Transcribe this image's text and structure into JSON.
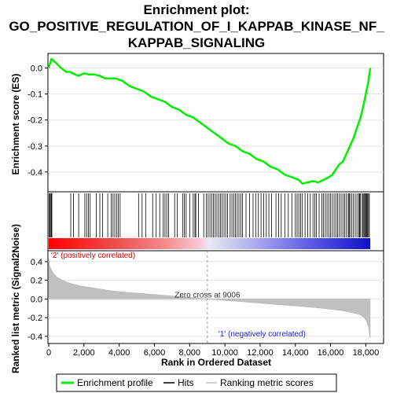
{
  "chart_data": {
    "type": "line",
    "title": [
      "Enrichment plot:",
      "GO_POSITIVE_REGULATION_OF_I_KAPPAB_KINASE_NF_",
      "KAPPAB_SIGNALING"
    ],
    "es_panel": {
      "ylabel": "Enrichment score (ES)",
      "ylim": [
        -0.47,
        0.05
      ],
      "yticks": [
        0.0,
        -0.1,
        -0.2,
        -0.3,
        -0.4
      ],
      "ytick_labels": [
        "0.0",
        "-0.1",
        "-0.2",
        "-0.3",
        "-0.4"
      ],
      "color": "#00ee00",
      "series": {
        "name": "Enrichment profile",
        "x": [
          0,
          150,
          400,
          700,
          1000,
          1200,
          1500,
          1700,
          2000,
          2300,
          2600,
          2900,
          3200,
          3500,
          3800,
          4200,
          4600,
          5000,
          5400,
          5800,
          6200,
          6600,
          7000,
          7400,
          7800,
          8200,
          8600,
          9000,
          9400,
          9800,
          10200,
          10600,
          11000,
          11400,
          11800,
          12200,
          12600,
          13000,
          13400,
          13800,
          14200,
          14400,
          14700,
          15000,
          15300,
          15600,
          15900,
          16100,
          16300,
          16500,
          16700,
          16900,
          17100,
          17300,
          17500,
          17700,
          17850,
          18000,
          18150,
          18250
        ],
        "y": [
          0.0,
          0.035,
          0.02,
          0.0,
          -0.015,
          -0.015,
          -0.025,
          -0.03,
          -0.02,
          -0.025,
          -0.025,
          -0.03,
          -0.04,
          -0.04,
          -0.04,
          -0.05,
          -0.07,
          -0.08,
          -0.09,
          -0.11,
          -0.12,
          -0.13,
          -0.15,
          -0.16,
          -0.18,
          -0.19,
          -0.21,
          -0.23,
          -0.25,
          -0.27,
          -0.29,
          -0.3,
          -0.32,
          -0.33,
          -0.35,
          -0.36,
          -0.38,
          -0.39,
          -0.41,
          -0.42,
          -0.43,
          -0.445,
          -0.44,
          -0.435,
          -0.44,
          -0.43,
          -0.42,
          -0.41,
          -0.39,
          -0.37,
          -0.36,
          -0.33,
          -0.3,
          -0.27,
          -0.23,
          -0.19,
          -0.15,
          -0.1,
          -0.05,
          0.0
        ]
      }
    },
    "hits": {
      "name": "Hits",
      "x": [
        30,
        60,
        100,
        150,
        180,
        1250,
        1400,
        1700,
        2050,
        2150,
        2250,
        2350,
        2700,
        2900,
        3050,
        3350,
        3550,
        3650,
        3750,
        3850,
        3950,
        4050,
        5100,
        5300,
        5500,
        5900,
        6100,
        6300,
        6500,
        6600,
        6700,
        6800,
        7150,
        7300,
        7600,
        7700,
        7800,
        8000,
        8200,
        8300,
        8350,
        8500,
        8800,
        8950,
        9050,
        9150,
        9250,
        9350,
        9450,
        9550,
        9650,
        9750,
        9850,
        9950,
        10050,
        10150,
        10300,
        10400,
        10500,
        10600,
        10700,
        10800,
        10900,
        11000,
        11200,
        11400,
        11600,
        11750,
        11900,
        12050,
        12200,
        12350,
        12500,
        12650,
        12900,
        13050,
        13200,
        13400,
        13600,
        13800,
        14000,
        14100,
        14200,
        14300,
        14400,
        14550,
        14700,
        14850,
        15000,
        15100,
        15200,
        15350,
        15500,
        15600,
        15700,
        15800,
        15900,
        16000,
        16100,
        16200,
        16300,
        16400,
        16500,
        16600,
        16700,
        16800,
        16900,
        17000,
        17050,
        17100,
        17200,
        17300,
        17400,
        17500,
        17600,
        17650,
        17700,
        17800,
        17850,
        17900,
        17950,
        18000,
        18050,
        18100,
        18150,
        18200
      ]
    },
    "metric_panel": {
      "ylabel": "Ranked list metric (Signal2Noise)",
      "xlabel": "Rank in Ordered Dataset",
      "ylim": [
        -0.46,
        0.5
      ],
      "yticks": [
        0.4,
        0.2,
        0.0,
        -0.2,
        -0.4
      ],
      "ytick_labels": [
        "0.4",
        "0.2",
        "0.0",
        "-0.2",
        "-0.4"
      ],
      "xlim": [
        0,
        18250
      ],
      "xticks": [
        0,
        2000,
        4000,
        6000,
        8000,
        10000,
        12000,
        14000,
        16000,
        18000
      ],
      "xtick_labels": [
        "0",
        "2,000",
        "4,000",
        "6,000",
        "8,000",
        "10,000",
        "12,000",
        "14,000",
        "16,000",
        "18,000"
      ],
      "zero_cross": 9006,
      "zero_cross_label": "Zero cross at 9006",
      "pos_label": "'2' (positively correlated)",
      "neg_label": "'1' (negatively correlated)",
      "series": {
        "name": "Ranking metric scores",
        "x": [
          0,
          50,
          150,
          300,
          500,
          800,
          1200,
          1800,
          2500,
          3500,
          4500,
          5500,
          6500,
          7500,
          8500,
          9006,
          10000,
          11000,
          12000,
          13000,
          14000,
          15000,
          16000,
          16800,
          17300,
          17700,
          17900,
          18050,
          18150,
          18250
        ],
        "y": [
          0.42,
          0.36,
          0.31,
          0.27,
          0.23,
          0.2,
          0.17,
          0.14,
          0.12,
          0.09,
          0.07,
          0.055,
          0.04,
          0.025,
          0.01,
          0.0,
          -0.015,
          -0.03,
          -0.045,
          -0.06,
          -0.075,
          -0.09,
          -0.11,
          -0.13,
          -0.15,
          -0.17,
          -0.2,
          -0.24,
          -0.3,
          -0.42
        ]
      }
    },
    "legend": {
      "position": "bottom",
      "items": [
        {
          "label": "Enrichment profile",
          "color": "#00ee00"
        },
        {
          "label": "Hits",
          "color": "#000000"
        },
        {
          "label": "Ranking metric scores",
          "color": "#c0c0c0"
        }
      ]
    }
  }
}
